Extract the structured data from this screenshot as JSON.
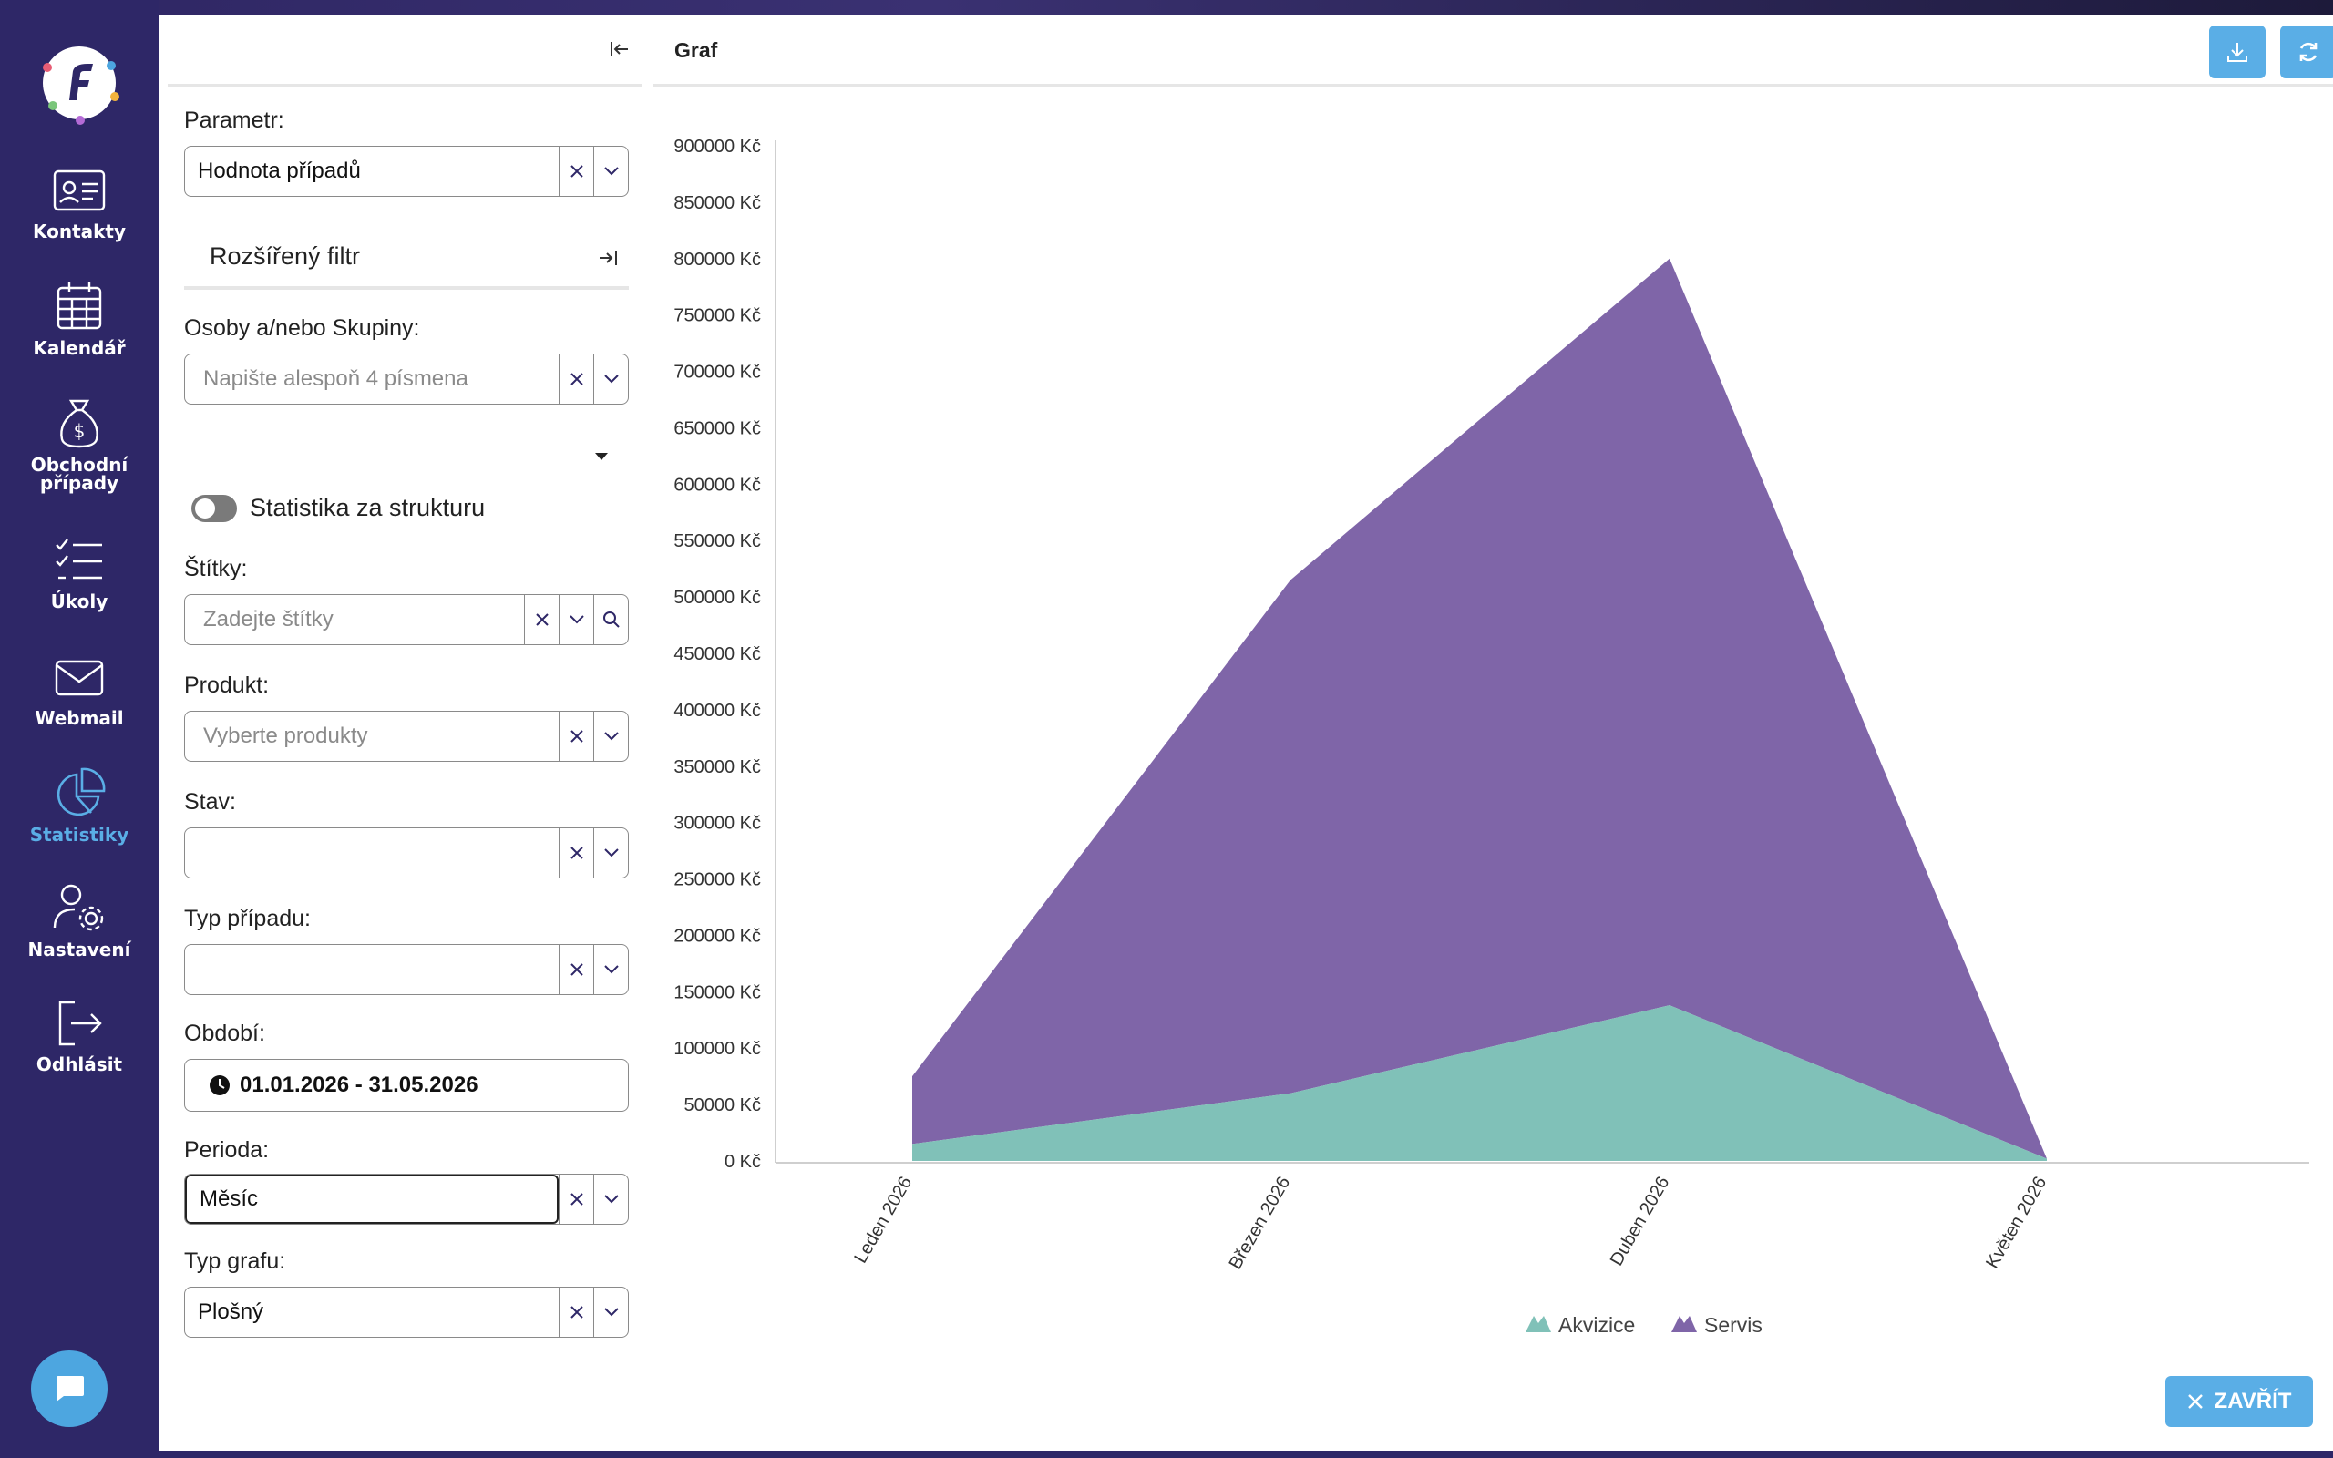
{
  "nav": {
    "items": [
      {
        "label": "Kontakty",
        "icon": "contact-card-icon"
      },
      {
        "label": "Kalendář",
        "icon": "calendar-icon"
      },
      {
        "label": "Obchodní\npřípady",
        "icon": "money-bag-icon"
      },
      {
        "label": "Úkoly",
        "icon": "task-list-icon"
      },
      {
        "label": "Webmail",
        "icon": "mail-icon"
      },
      {
        "label": "Statistiky",
        "icon": "pie-chart-icon",
        "active": true
      },
      {
        "label": "Nastavení",
        "icon": "user-settings-icon"
      },
      {
        "label": "Odhlásit",
        "icon": "logout-icon"
      }
    ]
  },
  "filters": {
    "parametr_label": "Parametr:",
    "parametr_value": "Hodnota případů",
    "extended_filter": "Rozšířený filtr",
    "osoby_label": "Osoby a/nebo Skupiny:",
    "osoby_placeholder": "Napište alespoň 4 písmena",
    "structure_toggle": "Statistika za strukturu",
    "stitky_label": "Štítky:",
    "stitky_placeholder": "Zadejte štítky",
    "produkt_label": "Produkt:",
    "produkt_placeholder": "Vyberte produkty",
    "stav_label": "Stav:",
    "stav_value": "",
    "typ_pripadu_label": "Typ případu:",
    "typ_pripadu_value": "",
    "obdobi_label": "Období:",
    "obdobi_value": "01.01.2026 - 31.05.2026",
    "perioda_label": "Perioda:",
    "perioda_value": "Měsíc",
    "typ_grafu_label": "Typ grafu:",
    "typ_grafu_value": "Plošný"
  },
  "chart_header": {
    "title": "Graf"
  },
  "close_button": "ZAVŘÍT",
  "colors": {
    "nav_bg": "#2e2767",
    "accent": "#5aaee6",
    "servis": "#7f65a8",
    "akvizice": "#80c1b8"
  },
  "chart_data": {
    "type": "area",
    "stacked": true,
    "categories": [
      "Leden 2026",
      "Březen 2026",
      "Duben 2026",
      "Květen 2026"
    ],
    "series": [
      {
        "name": "Akvizice",
        "values": [
          15000,
          60000,
          138000,
          2000
        ],
        "color": "#80c1b8"
      },
      {
        "name": "Servis",
        "values": [
          60000,
          455000,
          662000,
          0
        ],
        "color": "#7f65a8"
      }
    ],
    "ylim": [
      0,
      900000
    ],
    "y_ticks": [
      0,
      50000,
      100000,
      150000,
      200000,
      250000,
      300000,
      350000,
      400000,
      450000,
      500000,
      550000,
      600000,
      650000,
      700000,
      750000,
      800000,
      850000,
      900000
    ],
    "y_tick_suffix": " Kč",
    "legend_position": "bottom-center",
    "grid": false
  }
}
